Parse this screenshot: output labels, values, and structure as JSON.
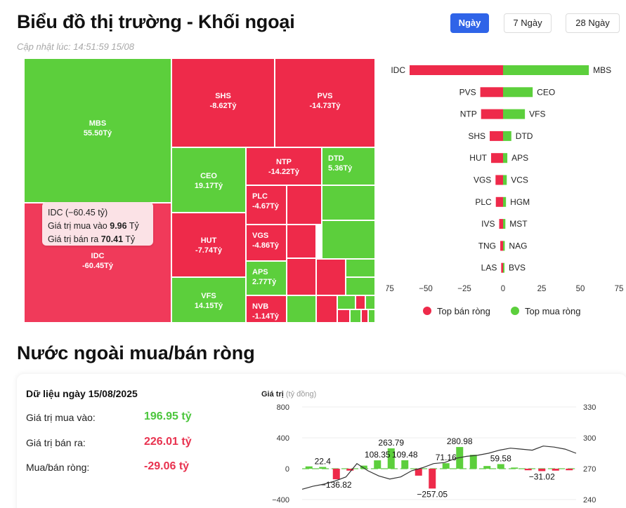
{
  "header": {
    "title": "Biểu đồ thị trường - Khối ngoại",
    "updated": "Cập nhật lúc: 14:51:59 15/08",
    "range_buttons": [
      "Ngày",
      "7 Ngày",
      "28 Ngày"
    ],
    "active_range": "Ngày"
  },
  "colors": {
    "buy": "#5ccf3c",
    "sell": "#ee2a4a",
    "tooltip_bg": "#fbe2e6",
    "accent": "#2f64e8"
  },
  "tooltip": {
    "title": "IDC (−60.45 tỷ)",
    "buy_label": "Giá trị mua vào",
    "buy_value": "9.96",
    "sell_label": "Giá trị bán ra",
    "sell_value": "70.41",
    "unit": "Tỷ"
  },
  "chart_data": [
    {
      "type": "treemap",
      "labeled_tiles": [
        {
          "ticker": "MBS",
          "value": "55.50Tỷ"
        },
        {
          "ticker": "IDC",
          "value": "-60.45Tỷ"
        },
        {
          "ticker": "SHS",
          "value": "-8.62Tỷ"
        },
        {
          "ticker": "PVS",
          "value": "-14.73Tỷ"
        },
        {
          "ticker": "CEO",
          "value": "19.17Tỷ"
        },
        {
          "ticker": "NTP",
          "value": "-14.22Tỷ"
        },
        {
          "ticker": "DTD",
          "value": "5.36Tỷ"
        },
        {
          "ticker": "HUT",
          "value": "-7.74Tỷ"
        },
        {
          "ticker": "PLC",
          "value": "-4.67Tỷ"
        },
        {
          "ticker": "VGS",
          "value": "-4.86Tỷ"
        },
        {
          "ticker": "VFS",
          "value": "14.15Tỷ"
        },
        {
          "ticker": "APS",
          "value": "2.77Tỷ"
        },
        {
          "ticker": "NVB",
          "value": "-1.14Tỷ"
        }
      ]
    },
    {
      "type": "bar",
      "orientation": "horizontal-diverging",
      "sell_tickers": [
        "IDC",
        "PVS",
        "NTP",
        "SHS",
        "HUT",
        "VGS",
        "PLC",
        "IVS",
        "TNG",
        "LAS"
      ],
      "sell_values": [
        -60.45,
        -14.73,
        -14.22,
        -8.62,
        -7.74,
        -4.86,
        -4.67,
        -2.5,
        -1.8,
        -1.2
      ],
      "buy_tickers": [
        "MBS",
        "CEO",
        "VFS",
        "DTD",
        "APS",
        "VCS",
        "HGM",
        "MST",
        "NAG",
        "BVS"
      ],
      "buy_values": [
        55.5,
        19.17,
        14.15,
        5.36,
        2.77,
        2.4,
        1.9,
        1.5,
        1.1,
        0.9
      ],
      "x_ticks": [
        "−75",
        "−50",
        "−25",
        "0",
        "25",
        "50",
        "75"
      ],
      "xlim": [
        -75,
        75
      ],
      "legend": [
        "Top bán ròng",
        "Top mua ròng"
      ],
      "legend_position": "bottom"
    },
    {
      "type": "bar+line",
      "ylabel": "Giá trị",
      "ylabel_unit": "(tỷ đồng)",
      "y_ticks": [
        "800",
        "400",
        "0",
        "−400"
      ],
      "ylim": [
        -400,
        800
      ],
      "y2_ticks": [
        "330",
        "300",
        "270",
        "240"
      ],
      "y2lim": [
        240,
        330
      ],
      "bars": [
        30,
        22.4,
        -136.82,
        -25,
        40,
        108.35,
        263.79,
        109.48,
        -90,
        -257.05,
        71.16,
        280.98,
        180,
        35,
        59.58,
        15,
        -20,
        -31.02,
        -25,
        -20
      ],
      "bar_labels": [
        {
          "index": 1,
          "text": "22.4"
        },
        {
          "index": 2,
          "text": "−136.82"
        },
        {
          "index": 5,
          "text": "108.35"
        },
        {
          "index": 6,
          "text": "263.79"
        },
        {
          "index": 7,
          "text": "109.48"
        },
        {
          "index": 9,
          "text": "−257.05"
        },
        {
          "index": 10,
          "text": "71.16"
        },
        {
          "index": 11,
          "text": "280.98"
        },
        {
          "index": 14,
          "text": "59.58"
        },
        {
          "index": 17,
          "text": "−31.02"
        }
      ],
      "index_line": [
        250,
        253,
        255,
        258,
        262,
        275,
        268,
        263,
        260,
        262,
        268,
        271,
        275,
        276,
        280,
        282,
        283,
        285,
        288,
        290,
        289,
        288,
        292,
        291,
        289,
        285
      ]
    }
  ],
  "summary": {
    "title": "Dữ liệu ngày 15/08/2025",
    "rows": [
      {
        "label": "Giá trị mua vào:",
        "value": "196.95 tỷ"
      },
      {
        "label": "Giá trị bán ra:",
        "value": "226.01 tỷ"
      },
      {
        "label": "Mua/bán ròng:",
        "value": "-29.06 tỷ"
      }
    ],
    "section_title": "Nước ngoài mua/bán ròng"
  }
}
